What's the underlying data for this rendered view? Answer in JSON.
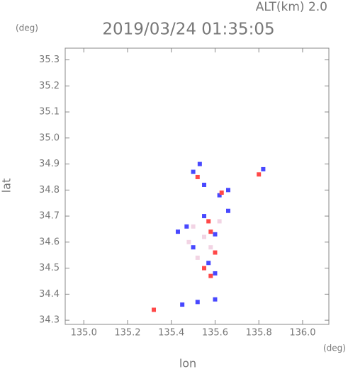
{
  "chart_data": {
    "type": "scatter",
    "header": "ALT(km) 2.0",
    "title": "2019/03/24 01:35:05",
    "y_unit": "(deg)",
    "x_unit": "(deg)",
    "xlabel": "lon",
    "ylabel": "lat",
    "xlim": [
      134.915,
      136.12
    ],
    "ylim": [
      34.284,
      35.345
    ],
    "xticks": [
      {
        "value": 135,
        "label": "135.0"
      },
      135.2,
      135.4,
      135.6,
      135.8,
      {
        "value": 136,
        "label": "136.0"
      }
    ],
    "yticks": [
      34.3,
      34.4,
      34.5,
      34.6,
      34.7,
      34.8,
      34.9,
      {
        "value": 35,
        "label": "35.0"
      },
      35.1,
      35.2,
      35.3
    ],
    "series": [
      {
        "color": "#f2d4e4",
        "x": [
          135.55,
          135.5,
          135.58,
          135.52,
          135.48,
          135.62
        ],
        "values": [
          34.62,
          34.66,
          34.58,
          34.54,
          34.6,
          34.68
        ]
      },
      {
        "color": "#4848ff",
        "x": [
          135.5,
          135.55,
          135.62,
          135.66,
          135.82,
          135.47,
          135.55,
          135.6,
          135.5,
          135.57,
          135.6,
          135.45,
          135.52,
          135.6,
          135.66,
          135.43,
          135.53
        ],
        "values": [
          34.87,
          34.82,
          34.78,
          34.72,
          34.88,
          34.66,
          34.7,
          34.63,
          34.58,
          34.52,
          34.48,
          34.36,
          34.37,
          34.38,
          34.8,
          34.64,
          34.9
        ]
      },
      {
        "color": "#ff4848",
        "x": [
          135.52,
          135.63,
          135.58,
          135.6,
          135.55,
          135.58,
          135.32,
          135.8,
          135.57
        ],
        "values": [
          34.85,
          34.79,
          34.64,
          34.56,
          34.5,
          34.47,
          34.34,
          34.86,
          34.68
        ]
      }
    ]
  }
}
